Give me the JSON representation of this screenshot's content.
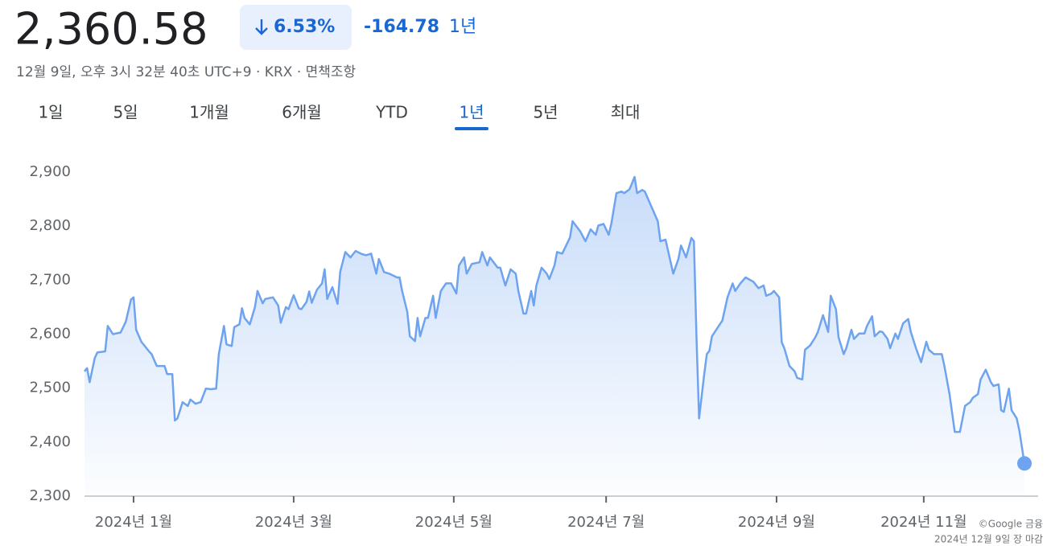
{
  "header": {
    "price": "2,360.58",
    "change_percent": "6.53%",
    "change": "-164.78",
    "period": "1년",
    "timestamp": "12월 9일, 오후 3시 32분 40초 UTC+9 · KRX · 면책조항",
    "tabs": [
      {
        "label": "1일"
      },
      {
        "label": "5일"
      },
      {
        "label": "1개월"
      },
      {
        "label": "6개월"
      },
      {
        "label": "YTD"
      },
      {
        "label": "1년",
        "selected": true
      },
      {
        "label": "5년"
      },
      {
        "label": "최대"
      }
    ]
  },
  "chart_data": {
    "type": "line",
    "color": "#6ea3ef",
    "grid": false,
    "x": [
      0,
      1,
      2,
      4,
      5,
      8,
      9,
      11,
      14,
      16,
      18,
      19,
      20,
      22,
      25,
      26,
      28,
      31,
      32,
      34,
      35,
      36,
      38,
      40,
      41,
      43,
      45,
      47,
      49,
      51,
      52,
      54,
      55,
      57,
      58,
      60,
      61,
      62,
      64,
      66,
      67,
      69,
      70,
      73,
      75,
      76,
      78,
      79,
      81,
      83,
      84,
      86,
      87,
      88,
      90,
      92,
      93,
      94,
      96,
      98,
      99,
      101,
      103,
      105,
      107,
      109,
      111,
      113,
      114,
      116,
      118,
      121,
      122,
      123,
      125,
      126,
      128,
      129,
      130,
      132,
      133,
      135,
      136,
      138,
      140,
      142,
      144,
      145,
      147,
      148,
      150,
      153,
      154,
      156,
      157,
      160,
      161,
      163,
      165,
      167,
      168,
      170,
      171,
      173,
      174,
      175,
      177,
      179,
      180,
      182,
      183,
      185,
      188,
      189,
      192,
      194,
      196,
      198,
      199,
      201,
      203,
      204,
      206,
      208,
      209,
      211,
      212,
      213,
      214,
      216,
      217,
      220,
      222,
      223,
      225,
      228,
      230,
      231,
      233,
      235,
      236,
      237,
      238,
      240,
      241,
      242,
      243,
      246,
      247,
      249,
      251,
      252,
      254,
      256,
      259,
      261,
      263,
      264,
      266,
      267,
      269,
      270,
      271,
      273,
      275,
      276,
      278,
      279,
      281,
      283,
      284,
      286,
      288,
      289,
      291,
      292,
      294,
      295,
      297,
      298,
      300,
      302,
      303,
      305,
      306,
      308,
      309,
      311,
      312,
      314,
      315,
      317,
      319,
      320,
      322,
      324,
      326,
      327,
      329,
      332,
      333,
      335,
      337,
      339,
      341,
      343,
      344,
      346,
      347,
      349,
      351,
      352,
      354,
      355,
      356,
      358,
      359,
      361,
      362,
      364
    ],
    "values": [
      2531,
      2537,
      2511,
      2556,
      2566,
      2568,
      2615,
      2600,
      2603,
      2623,
      2664,
      2668,
      2608,
      2586,
      2568,
      2563,
      2541,
      2541,
      2526,
      2526,
      2440,
      2444,
      2474,
      2467,
      2479,
      2471,
      2474,
      2499,
      2498,
      2499,
      2563,
      2615,
      2581,
      2578,
      2613,
      2618,
      2648,
      2630,
      2618,
      2650,
      2680,
      2657,
      2665,
      2668,
      2653,
      2621,
      2650,
      2646,
      2672,
      2648,
      2646,
      2660,
      2679,
      2658,
      2682,
      2694,
      2720,
      2665,
      2687,
      2656,
      2715,
      2752,
      2742,
      2754,
      2749,
      2746,
      2749,
      2712,
      2739,
      2715,
      2712,
      2705,
      2705,
      2680,
      2641,
      2596,
      2587,
      2630,
      2596,
      2630,
      2630,
      2671,
      2630,
      2680,
      2694,
      2694,
      2675,
      2727,
      2742,
      2712,
      2730,
      2733,
      2752,
      2727,
      2742,
      2723,
      2723,
      2690,
      2720,
      2712,
      2680,
      2638,
      2638,
      2680,
      2653,
      2690,
      2723,
      2712,
      2702,
      2727,
      2752,
      2749,
      2779,
      2809,
      2790,
      2772,
      2794,
      2784,
      2801,
      2804,
      2784,
      2804,
      2861,
      2864,
      2861,
      2868,
      2879,
      2891,
      2861,
      2867,
      2864,
      2831,
      2809,
      2772,
      2775,
      2712,
      2739,
      2764,
      2742,
      2778,
      2772,
      2593,
      2444,
      2526,
      2563,
      2569,
      2596,
      2618,
      2625,
      2668,
      2694,
      2680,
      2694,
      2705,
      2697,
      2685,
      2690,
      2671,
      2675,
      2680,
      2668,
      2585,
      2574,
      2541,
      2531,
      2519,
      2516,
      2571,
      2579,
      2594,
      2604,
      2635,
      2604,
      2671,
      2646,
      2594,
      2563,
      2574,
      2608,
      2591,
      2601,
      2601,
      2615,
      2633,
      2596,
      2605,
      2604,
      2591,
      2574,
      2601,
      2591,
      2620,
      2628,
      2604,
      2574,
      2548,
      2586,
      2571,
      2563,
      2563,
      2541,
      2489,
      2419,
      2419,
      2467,
      2474,
      2482,
      2489,
      2516,
      2534,
      2511,
      2504,
      2507,
      2459,
      2456,
      2499,
      2459,
      2444,
      2422,
      2360.58
    ],
    "xlim": [
      0,
      364
    ],
    "xticks": [
      {
        "value": 19,
        "label": "2024년 1월"
      },
      {
        "value": 81,
        "label": "2024년 3월"
      },
      {
        "value": 143,
        "label": "2024년 5월"
      },
      {
        "value": 202,
        "label": "2024년 7월"
      },
      {
        "value": 268,
        "label": "2024년 9월"
      },
      {
        "value": 325,
        "label": "2024년 11월"
      }
    ],
    "ylim": [
      2300,
      2900
    ],
    "yticks": [
      {
        "value": 2300,
        "label": "2,300"
      },
      {
        "value": 2400,
        "label": "2,400"
      },
      {
        "value": 2500,
        "label": "2,500"
      },
      {
        "value": 2600,
        "label": "2,600"
      },
      {
        "value": 2700,
        "label": "2,700"
      },
      {
        "value": 2800,
        "label": "2,800"
      },
      {
        "value": 2900,
        "label": "2,900"
      }
    ]
  },
  "footer": {
    "source": "©Google 금융",
    "note": "2024년 12월 9일 장 마감"
  }
}
